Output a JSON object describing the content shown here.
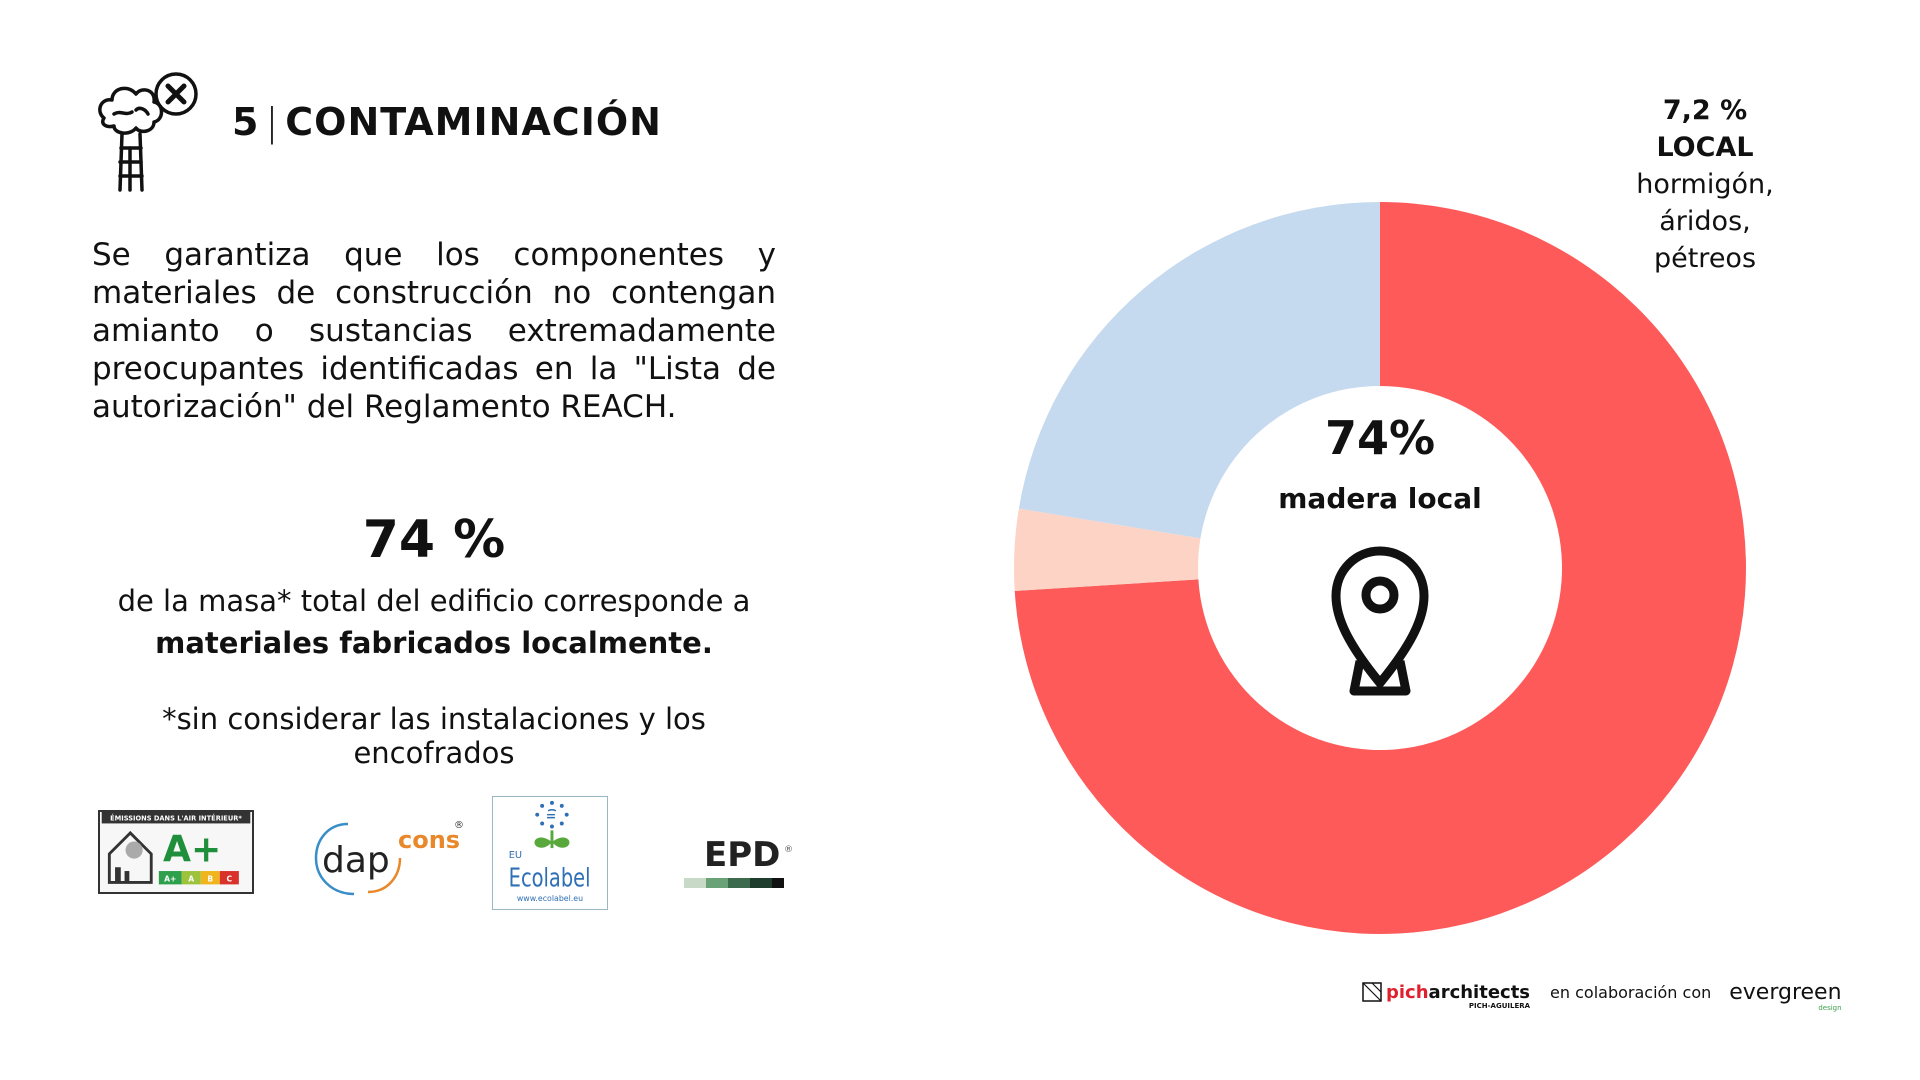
{
  "header": {
    "number": "5",
    "title": "CONTAMINACIÓN",
    "icon": "pollution-tree-chimney-icon"
  },
  "intro_text": "Se garantiza que los componentes y materiales de construcción no contengan amianto o sustancias extremadamente preocupantes identificadas en la \"Lista de autorización\" del Reglamento REACH.",
  "highlight": {
    "percent": "74 %",
    "line1": "de la masa* total del edificio corresponde a",
    "line2": "materiales fabricados localmente."
  },
  "note": "*sin considerar las instalaciones y los encofrados",
  "logos": {
    "aplus": {
      "header": "ÉMISSIONS DANS L'AIR INTÉRIEUR*",
      "grade": "A+",
      "scale": [
        "A+",
        "A",
        "B",
        "C"
      ]
    },
    "dapcons": {
      "dap": "dap",
      "cons": "cons",
      "reg": "®"
    },
    "ecolabel": {
      "eu": "EU",
      "name": "Ecolabel",
      "url": "www.ecolabel.eu"
    },
    "epd": {
      "text": "EPD",
      "reg": "®"
    }
  },
  "chart_data": {
    "type": "pie",
    "variant": "donut",
    "center_value": "74%",
    "center_label": "madera local",
    "center_icon": "location-pin-icon",
    "slices": [
      {
        "value": 74,
        "color": "#fe5a5a"
      },
      {
        "value": 3.6,
        "color": "#fcd3c4"
      },
      {
        "value": 22.4,
        "color": "#c6daef"
      }
    ],
    "annotation": {
      "value": "7,2 %",
      "label": "LOCAL",
      "desc1": "hormigón, áridos,",
      "desc2": "pétreos"
    }
  },
  "footer": {
    "pich_prefix": "pich",
    "pich_suffix": "architects",
    "pich_sub": "PICH-AGUILERA",
    "collab": "en colaboración con",
    "evergreen": "evergreen",
    "evergreen_sub": "design"
  }
}
